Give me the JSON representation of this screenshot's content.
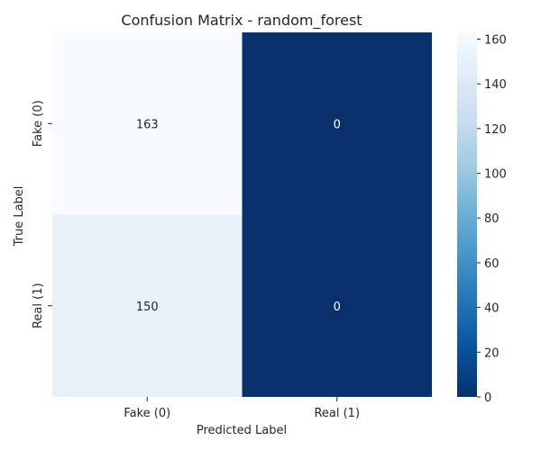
{
  "chart_data": {
    "type": "heatmap",
    "title": "Confusion Matrix - random_forest",
    "xlabel": "Predicted Label",
    "ylabel": "True Label",
    "x_categories": [
      "Fake (0)",
      "Real (1)"
    ],
    "y_categories": [
      "Fake (0)",
      "Real (1)"
    ],
    "matrix": [
      [
        163,
        0
      ],
      [
        150,
        0
      ]
    ],
    "cell_labels": [
      [
        "163",
        "0"
      ],
      [
        "150",
        "0"
      ]
    ],
    "colorbar": {
      "colormap": "Blues",
      "range": [
        0,
        163
      ],
      "ticks": [
        0,
        20,
        40,
        60,
        80,
        100,
        120,
        140,
        160
      ],
      "tick_labels": [
        "0",
        "20",
        "40",
        "60",
        "80",
        "100",
        "120",
        "140",
        "160"
      ]
    },
    "colors": {
      "low": "#08306b",
      "high": "#f7fbff",
      "dark_text": "#262626",
      "light_text": "#ffffff"
    }
  }
}
